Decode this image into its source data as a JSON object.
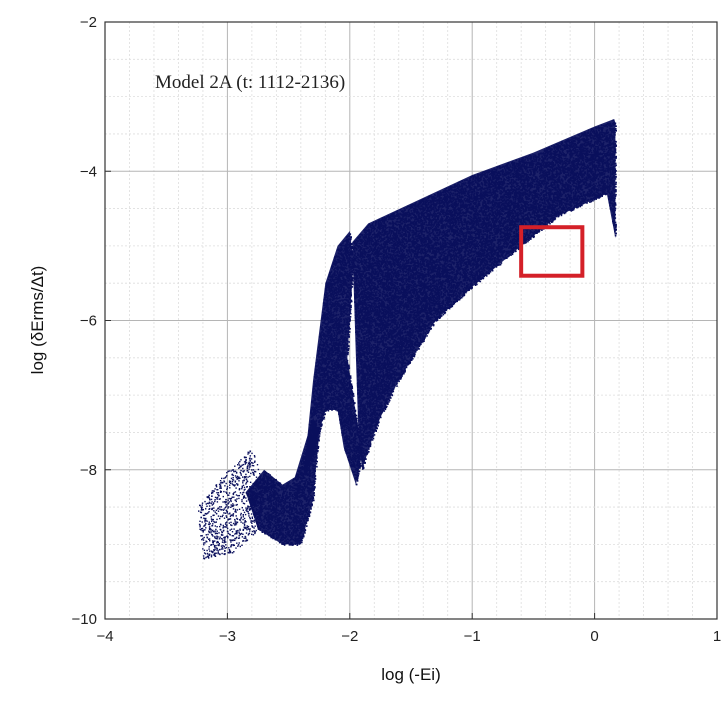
{
  "chart_data": {
    "type": "scatter",
    "title": "",
    "annotation": "Model 2A  (t: 1112-2136)",
    "xlabel": "log (-Ei)",
    "ylabel": "log (δErms/Δt)",
    "xlim": [
      -4,
      1
    ],
    "ylim": [
      -10,
      -2
    ],
    "xticks": [
      -4,
      -3,
      -2,
      -1,
      0,
      1
    ],
    "yticks": [
      -10,
      -8,
      -6,
      -4,
      -2
    ],
    "xtick_labels": [
      "−4",
      "−3",
      "−2",
      "−1",
      "0",
      "1"
    ],
    "ytick_labels": [
      "−10",
      "−8",
      "−6",
      "−4",
      "−2"
    ],
    "grid": true,
    "point_color": "#0a0f5c",
    "highlight_box": {
      "x": [
        -0.6,
        -0.1
      ],
      "y": [
        -5.4,
        -4.75
      ],
      "color": "#d42028"
    },
    "regions": [
      {
        "name": "main-band",
        "density": 1.0,
        "polygon": [
          [
            -1.98,
            -4.95
          ],
          [
            -1.85,
            -4.7
          ],
          [
            -1.0,
            -4.05
          ],
          [
            -0.5,
            -3.75
          ],
          [
            0.0,
            -3.4
          ],
          [
            0.16,
            -3.3
          ],
          [
            0.17,
            -3.35
          ],
          [
            0.17,
            -4.9
          ],
          [
            0.1,
            -4.3
          ],
          [
            -0.3,
            -4.6
          ],
          [
            -0.6,
            -5.0
          ],
          [
            -1.0,
            -5.55
          ],
          [
            -1.3,
            -6.0
          ],
          [
            -1.6,
            -6.8
          ],
          [
            -1.75,
            -7.3
          ],
          [
            -1.82,
            -7.6
          ],
          [
            -1.9,
            -8.0
          ],
          [
            -1.93,
            -7.5
          ],
          [
            -1.95,
            -6.5
          ]
        ]
      },
      {
        "name": "spike",
        "density": 1.0,
        "polygon": [
          [
            -2.3,
            -6.8
          ],
          [
            -2.2,
            -5.5
          ],
          [
            -2.1,
            -5.0
          ],
          [
            -2.0,
            -4.8
          ],
          [
            -1.97,
            -5.2
          ],
          [
            -2.02,
            -6.5
          ],
          [
            -1.9,
            -7.8
          ],
          [
            -1.95,
            -8.2
          ],
          [
            -2.05,
            -7.7
          ],
          [
            -2.1,
            -7.2
          ],
          [
            -2.2,
            -7.2
          ],
          [
            -2.3,
            -7.8
          ],
          [
            -2.38,
            -8.1
          ]
        ]
      },
      {
        "name": "lower-tail",
        "density": 0.9,
        "polygon": [
          [
            -2.85,
            -8.3
          ],
          [
            -2.7,
            -8.0
          ],
          [
            -2.55,
            -8.2
          ],
          [
            -2.45,
            -8.1
          ],
          [
            -2.3,
            -7.3
          ],
          [
            -2.25,
            -7.5
          ],
          [
            -2.3,
            -8.4
          ],
          [
            -2.4,
            -9.0
          ],
          [
            -2.55,
            -9.0
          ],
          [
            -2.75,
            -8.8
          ]
        ]
      },
      {
        "name": "sparse-cloud",
        "density": 0.35,
        "polygon": [
          [
            -3.25,
            -8.5
          ],
          [
            -3.0,
            -8.0
          ],
          [
            -2.8,
            -7.7
          ],
          [
            -2.7,
            -8.2
          ],
          [
            -2.75,
            -8.8
          ],
          [
            -2.95,
            -9.1
          ],
          [
            -3.2,
            -9.2
          ]
        ]
      }
    ]
  }
}
